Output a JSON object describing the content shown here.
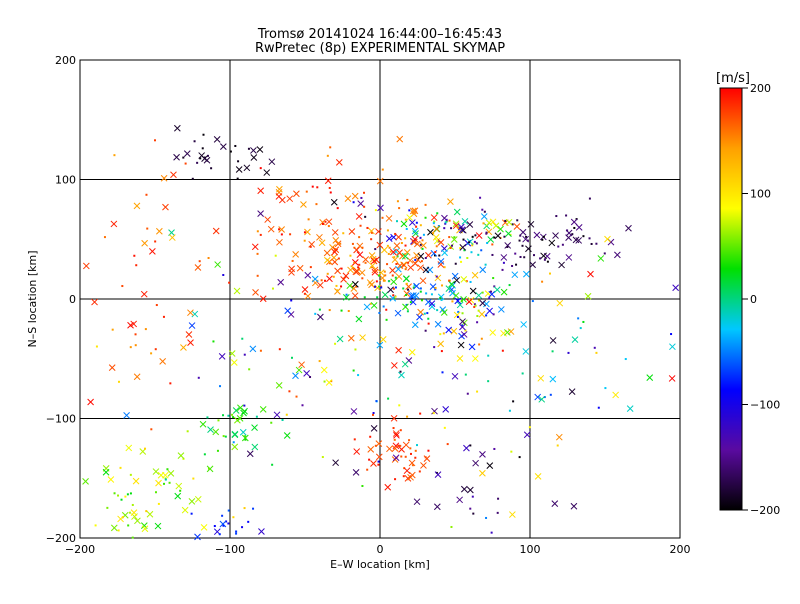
{
  "chart_data": {
    "type": "scatter",
    "title_line1": "Tromsø 20141024 16:44:00–16:45:43",
    "title_line2": "RwPretec (8p) EXPERIMENTAL SKYMAP",
    "xlabel": "E–W location [km]",
    "ylabel": "N–S location [km]",
    "xlim": [
      -200,
      200
    ],
    "ylim": [
      -200,
      200
    ],
    "xticks": [
      -200,
      -100,
      0,
      100,
      200
    ],
    "yticks": [
      -200,
      -100,
      0,
      100,
      200
    ],
    "grid_lines_x": [
      -100,
      0,
      100
    ],
    "grid_lines_y": [
      -100,
      0,
      100
    ],
    "colorbar": {
      "label": "[m/s]",
      "range": [
        -200,
        200
      ],
      "ticks": [
        200,
        100,
        0,
        -100,
        -200
      ],
      "colormap": [
        "#000000",
        "#5a0aa0",
        "#0000ff",
        "#00c8ff",
        "#00e000",
        "#ffff00",
        "#ffa000",
        "#ff0000"
      ]
    },
    "clusters": [
      {
        "cx": -105,
        "cy": 120,
        "sx": 18,
        "sy": 8,
        "n": 30,
        "vmin": -200,
        "vmax": -170
      },
      {
        "cx": 40,
        "cy": 55,
        "sx": 25,
        "sy": 12,
        "n": 110,
        "vmin": -200,
        "vmax": 200
      },
      {
        "cx": 0,
        "cy": 30,
        "sx": 25,
        "sy": 15,
        "n": 120,
        "vmin": 120,
        "vmax": 200
      },
      {
        "cx": 100,
        "cy": 50,
        "sx": 30,
        "sy": 10,
        "n": 70,
        "vmin": -200,
        "vmax": -150
      },
      {
        "cx": -40,
        "cy": 55,
        "sx": 35,
        "sy": 35,
        "n": 90,
        "vmin": 140,
        "vmax": 200
      },
      {
        "cx": 20,
        "cy": 5,
        "sx": 20,
        "sy": 12,
        "n": 70,
        "vmin": -80,
        "vmax": 40
      },
      {
        "cx": 60,
        "cy": -10,
        "sx": 15,
        "sy": 15,
        "n": 60,
        "vmin": -200,
        "vmax": 200
      },
      {
        "cx": 15,
        "cy": -130,
        "sx": 12,
        "sy": 12,
        "n": 50,
        "vmin": 160,
        "vmax": 200
      },
      {
        "cx": -150,
        "cy": -170,
        "sx": 25,
        "sy": 25,
        "n": 70,
        "vmin": 20,
        "vmax": 120
      },
      {
        "cx": -95,
        "cy": -110,
        "sx": 20,
        "sy": 15,
        "n": 35,
        "vmin": -20,
        "vmax": 60
      },
      {
        "cx": -100,
        "cy": -190,
        "sx": 15,
        "sy": 8,
        "n": 20,
        "vmin": -120,
        "vmax": -60
      },
      {
        "cx": 55,
        "cy": -160,
        "sx": 25,
        "sy": 20,
        "n": 25,
        "vmin": -200,
        "vmax": -120
      },
      {
        "cx": 0,
        "cy": -40,
        "sx": 80,
        "sy": 60,
        "n": 160,
        "vmin": -200,
        "vmax": 200
      },
      {
        "cx": -160,
        "cy": 10,
        "sx": 30,
        "sy": 60,
        "n": 50,
        "vmin": 140,
        "vmax": 200
      },
      {
        "cx": 120,
        "cy": -60,
        "sx": 40,
        "sy": 50,
        "n": 30,
        "vmin": -200,
        "vmax": 200
      }
    ]
  }
}
